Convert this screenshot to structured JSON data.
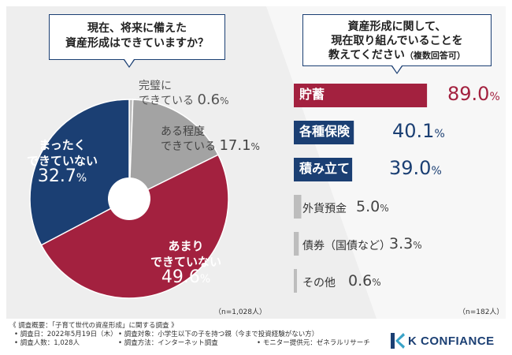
{
  "left_question": {
    "line1": "現在、将来に備えた",
    "line2": "資産形成はできていますか？"
  },
  "right_question": {
    "line1": "資産形成に関して、",
    "line2": "現在取り組んでいることを",
    "line3": "教えてください",
    "note": "（複数回答可）"
  },
  "left_n": "（n=1,028人）",
  "right_n": "（n=182人）",
  "footer": {
    "title": "《 調査概要：「子育て世代の資産形成」に関する調査 》",
    "date": "• 調査日：2022年5月19日（木）",
    "people": "• 調査人数：1,028人",
    "target": "• 調査対象：小学生以下の子を持つ親（今まで投資経験がない方）",
    "method": "• 調査方法：インターネット調査",
    "provider": "• モニター提供元：ゼネラルリサーチ"
  },
  "logo": {
    "text": "K CONFIANCE"
  },
  "colors": {
    "navy": "#1b3f73",
    "crimson": "#a3213f",
    "gray": "#a3a3a3",
    "light_gray": "#bdbdbd",
    "panel": "#eeeeee"
  },
  "chart_data": [
    {
      "type": "pie",
      "title": "現在、将来に備えた資産形成はできていますか？",
      "categories": [
        "完璧にできている",
        "ある程度できている",
        "あまりできていない",
        "まったくできていない"
      ],
      "values": [
        0.6,
        17.1,
        49.6,
        32.7
      ],
      "labels": [
        {
          "line1": "完璧に",
          "line2": "できている",
          "value": "0.6",
          "unit": "%"
        },
        {
          "line1": "ある程度",
          "line2": "できている",
          "value": "17.1",
          "unit": "%"
        },
        {
          "line1": "あまり",
          "line2": "できていない",
          "value": "49.6",
          "unit": "%"
        },
        {
          "line1": "まったく",
          "line2": "できていない",
          "value": "32.7",
          "unit": "%"
        }
      ],
      "n": 1028
    },
    {
      "type": "bar",
      "orientation": "horizontal",
      "title": "資産形成に関して、現在取り組んでいることを教えてください（複数回答可）",
      "categories": [
        "貯蓄",
        "各種保険",
        "積み立て",
        "外貨預金",
        "債券（国債など）",
        "その他"
      ],
      "values": [
        89.0,
        40.1,
        39.0,
        5.0,
        3.3,
        0.6
      ],
      "value_labels": [
        "89.0",
        "40.1",
        "39.0",
        "5.0",
        "3.3",
        "0.6"
      ],
      "unit": "%",
      "xlim": [
        0,
        100
      ],
      "n": 182
    }
  ]
}
